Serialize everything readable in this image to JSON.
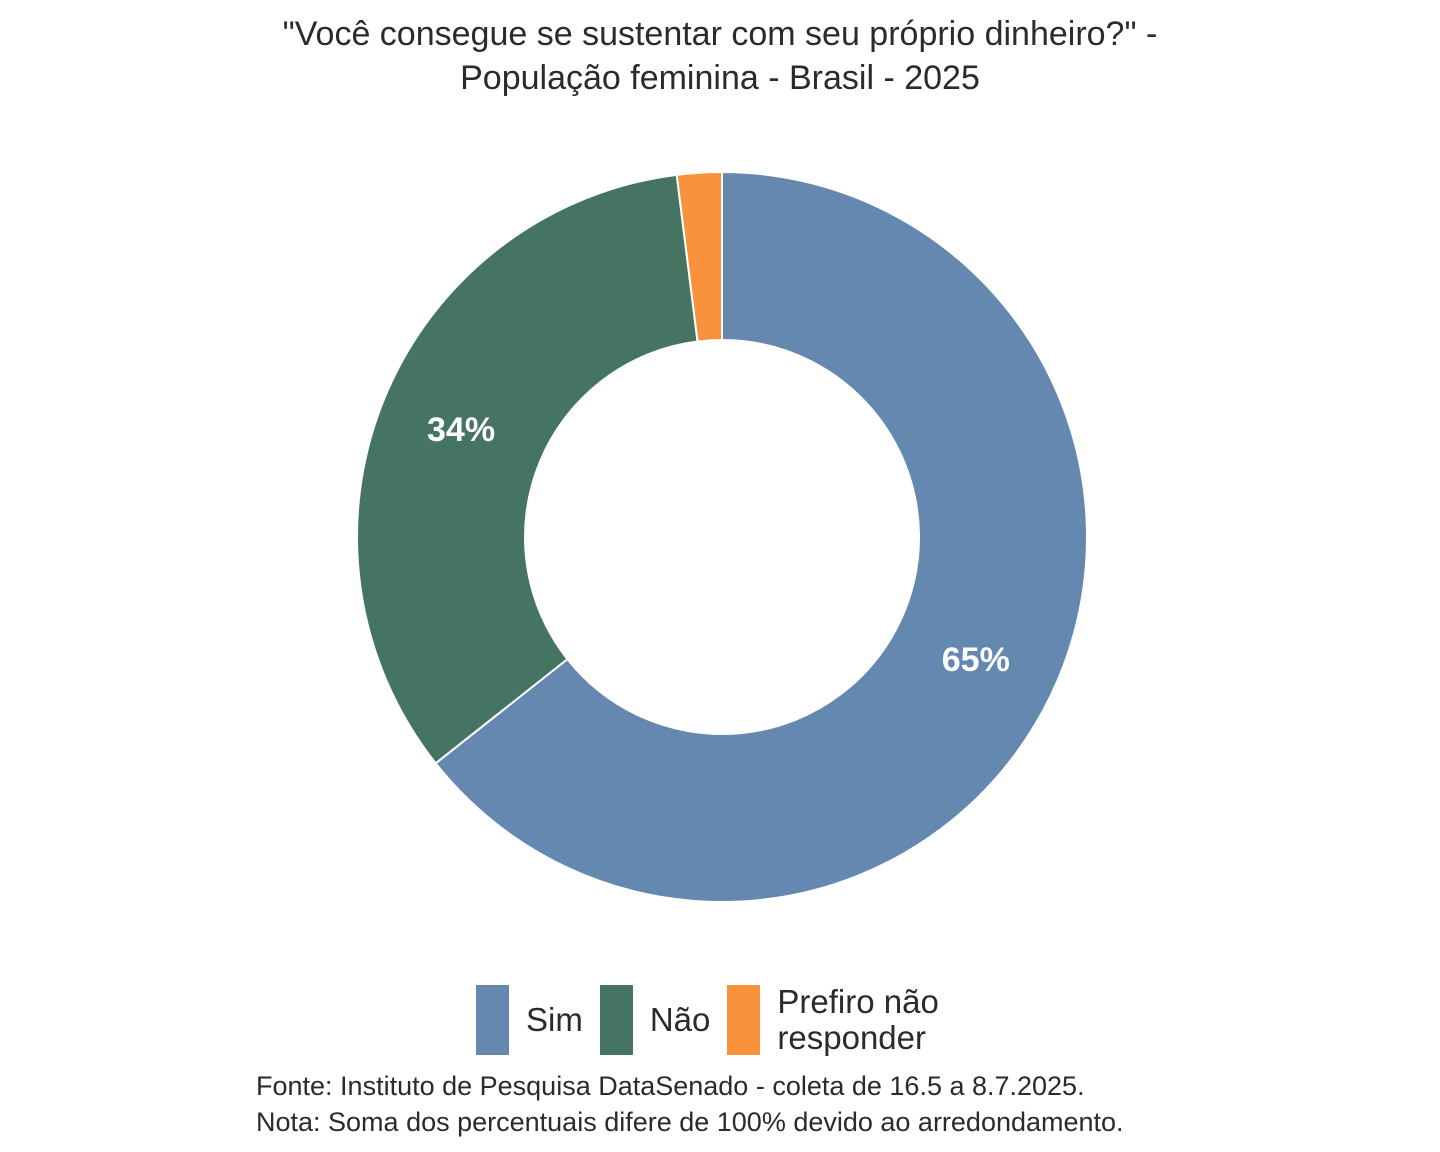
{
  "title": {
    "line1": "\"Você consegue se sustentar com seu próprio dinheiro?\" -",
    "line2": "População feminina - Brasil - 2025"
  },
  "chart_data": {
    "type": "pie",
    "variant": "donut",
    "title": "\"Você consegue se sustentar com seu próprio dinheiro?\" - População feminina - Brasil - 2025",
    "categories": [
      "Sim",
      "Não",
      "Prefiro não responder"
    ],
    "values": [
      65,
      34,
      2
    ],
    "data_labels": [
      "65%",
      "34%",
      ""
    ],
    "colors": [
      "#6488B0",
      "#457562",
      "#F8923C"
    ],
    "legend_position": "bottom",
    "start_angle": "top, clockwise"
  },
  "legend": {
    "items": [
      {
        "label": "Sim",
        "color": "#6488B0"
      },
      {
        "label": "Não",
        "color": "#457562"
      },
      {
        "label": "Prefiro não responder",
        "color": "#F8923C"
      }
    ]
  },
  "caption": {
    "source": "Fonte: Instituto de Pesquisa DataSenado - coleta de 16.5 a 8.7.2025.",
    "note": "Nota: Soma dos percentuais difere de 100% devido ao arredondamento."
  }
}
